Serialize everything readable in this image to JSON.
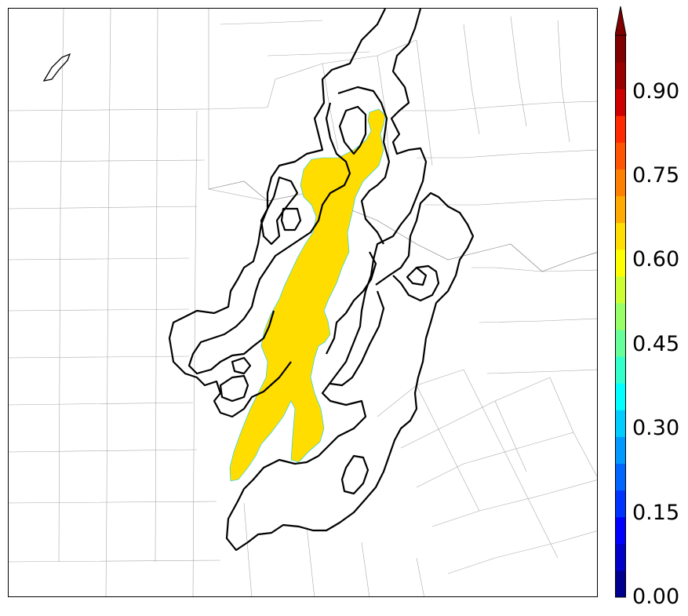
{
  "map": {
    "fill_color": "#ffdd00",
    "contour_color": "#000000",
    "boundary_color": "#9a9a9a"
  },
  "colorbar": {
    "min": 0.0,
    "max": 1.0,
    "extend": "max",
    "colors": [
      "#00008f",
      "#0000c8",
      "#0000ff",
      "#0033ff",
      "#0066ff",
      "#0099ff",
      "#00ccff",
      "#00ffff",
      "#33ffcc",
      "#66ff99",
      "#99ff66",
      "#ccff33",
      "#ffff00",
      "#ffdd00",
      "#ffaa00",
      "#ff8000",
      "#ff5500",
      "#ff2a00",
      "#cc0000",
      "#990000",
      "#800000"
    ],
    "ticks": [
      {
        "value": 0.0,
        "label": "0.00"
      },
      {
        "value": 0.15,
        "label": "0.15"
      },
      {
        "value": 0.3,
        "label": "0.30"
      },
      {
        "value": 0.45,
        "label": "0.45"
      },
      {
        "value": 0.6,
        "label": "0.60"
      },
      {
        "value": 0.75,
        "label": "0.75"
      },
      {
        "value": 0.9,
        "label": "0.90"
      }
    ]
  }
}
